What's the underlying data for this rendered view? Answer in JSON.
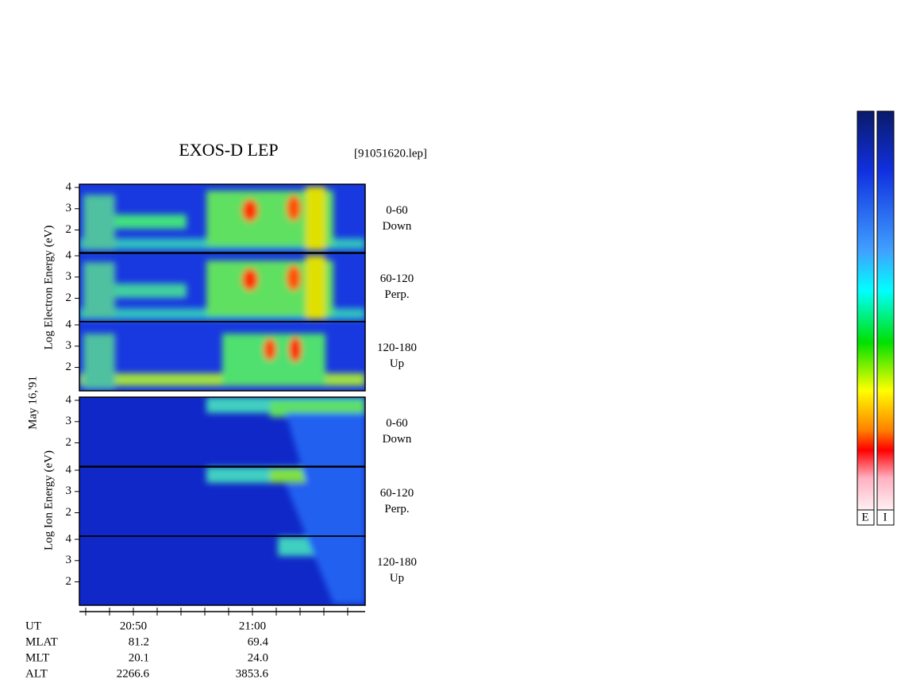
{
  "header": {
    "title": "EXOS-D LEP",
    "file": "[91051620.lep]"
  },
  "date": "May 16,'91",
  "groups": [
    "Log  Electron  Energy  (eV)",
    "Log  Ion  Energy  (eV)"
  ],
  "axis": {
    "ylim": [
      0.9,
      4.15
    ],
    "yticks": [
      2,
      3,
      4
    ]
  },
  "panels": [
    {
      "pitch": "0-60",
      "direction": "Down"
    },
    {
      "pitch": "60-120",
      "direction": "Perp."
    },
    {
      "pitch": "120-180",
      "direction": "Up"
    },
    {
      "pitch": "0-60",
      "direction": "Down"
    },
    {
      "pitch": "60-120",
      "direction": "Perp."
    },
    {
      "pitch": "120-180",
      "direction": "Up"
    }
  ],
  "ephemeris": {
    "labels": [
      "UT",
      "MLAT",
      "MLT",
      "ALT"
    ],
    "columns": [
      [
        "20:50",
        "81.2",
        "20.1",
        "2266.6"
      ],
      [
        "21:00",
        "69.4",
        "24.0",
        "3853.6"
      ]
    ]
  },
  "colorbars": [
    "E",
    "I"
  ]
}
